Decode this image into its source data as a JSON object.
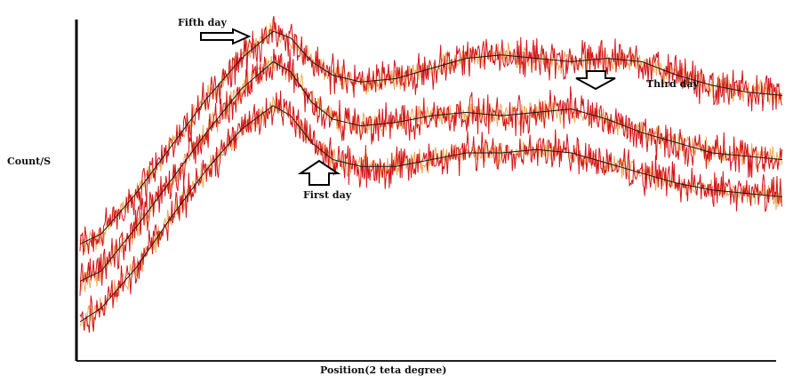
{
  "chart_data": {
    "type": "line",
    "title": "",
    "xlabel": "Position(2 teta degree)",
    "ylabel": "Count/S",
    "grid": false,
    "legend": "none",
    "xlim": [
      0,
      100
    ],
    "ylim": [
      0,
      100
    ],
    "colors": {
      "noise": "#d4141a",
      "noise_alt": "#e8a040",
      "trend": "#1a1a1a",
      "axis": "#000000"
    },
    "annotations": [
      {
        "text": "Fifth day",
        "series": "Fifth day",
        "arrow": "right"
      },
      {
        "text": "Third day",
        "series": "Third day",
        "arrow": "down"
      },
      {
        "text": "First day",
        "series": "First day",
        "arrow": "up"
      }
    ],
    "series": [
      {
        "name": "Fifth day",
        "x": [
          0,
          3,
          8,
          13,
          18,
          23,
          27.5,
          30,
          33,
          36,
          40,
          45,
          50,
          55,
          60,
          65,
          70,
          75,
          80,
          85,
          90,
          95,
          100
        ],
        "y": [
          33,
          36,
          48,
          62,
          76,
          88,
          96,
          94,
          87,
          83,
          81,
          82,
          85,
          88,
          89,
          88,
          87,
          88,
          87,
          83,
          80,
          78,
          77
        ]
      },
      {
        "name": "Third day",
        "x": [
          0,
          3,
          8,
          13,
          18,
          23,
          27.5,
          30,
          33,
          36,
          40,
          45,
          50,
          55,
          60,
          65,
          70,
          75,
          80,
          85,
          90,
          95,
          100
        ],
        "y": [
          22,
          25,
          38,
          52,
          66,
          79,
          87,
          84,
          75,
          70,
          68,
          69,
          71,
          72,
          71,
          72,
          73,
          70,
          66,
          63,
          60,
          59,
          58
        ]
      },
      {
        "name": "First day",
        "x": [
          0,
          3,
          8,
          13,
          18,
          23,
          27.5,
          30,
          33,
          36,
          40,
          45,
          50,
          55,
          60,
          65,
          70,
          75,
          80,
          85,
          90,
          95,
          100
        ],
        "y": [
          10,
          14,
          26,
          41,
          55,
          67,
          74,
          71,
          63,
          58,
          56,
          56,
          58,
          60,
          60,
          61,
          60,
          57,
          54,
          51,
          49,
          48,
          47
        ]
      }
    ]
  }
}
